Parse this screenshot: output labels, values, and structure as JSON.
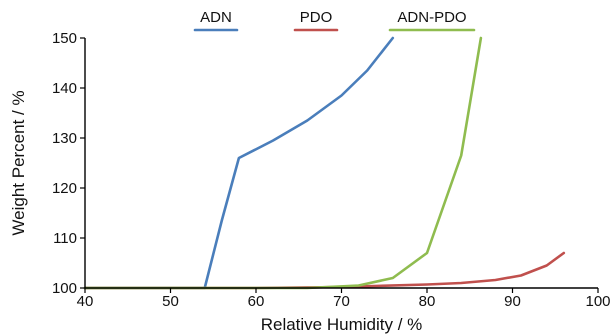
{
  "chart_data": {
    "type": "line",
    "title": "",
    "xlabel": "Relative Humidity / %",
    "ylabel": "Weight Percent / %",
    "xlim": [
      40,
      100
    ],
    "ylim": [
      100,
      150
    ],
    "xticks": [
      40,
      50,
      60,
      70,
      80,
      90,
      100
    ],
    "yticks": [
      100,
      110,
      120,
      130,
      140,
      150
    ],
    "xtick_labels": [
      "40",
      "50",
      "60",
      "70",
      "80",
      "90",
      "100"
    ],
    "ytick_labels": [
      "100",
      "110",
      "120",
      "130",
      "140",
      "150"
    ],
    "grid": false,
    "legend_position": "top",
    "series": [
      {
        "name": "ADN",
        "color": "#4a7ebb",
        "points": [
          [
            40,
            100
          ],
          [
            54,
            100
          ],
          [
            56,
            113.5
          ],
          [
            58,
            126
          ],
          [
            62,
            129.5
          ],
          [
            66,
            133.5
          ],
          [
            70,
            138.5
          ],
          [
            73,
            143.5
          ],
          [
            76,
            150
          ]
        ]
      },
      {
        "name": "PDO",
        "color": "#c0504d",
        "points": [
          [
            40,
            100
          ],
          [
            60,
            100
          ],
          [
            70,
            100.2
          ],
          [
            80,
            100.7
          ],
          [
            84,
            101.0
          ],
          [
            88,
            101.6
          ],
          [
            91,
            102.5
          ],
          [
            94,
            104.5
          ],
          [
            96,
            107
          ]
        ]
      },
      {
        "name": "ADN-PDO",
        "color": "#8fbc4f",
        "points": [
          [
            40,
            100
          ],
          [
            66,
            100
          ],
          [
            72,
            100.5
          ],
          [
            76,
            102
          ],
          [
            80,
            107
          ],
          [
            84,
            126.5
          ],
          [
            86.3,
            150
          ]
        ]
      }
    ]
  }
}
